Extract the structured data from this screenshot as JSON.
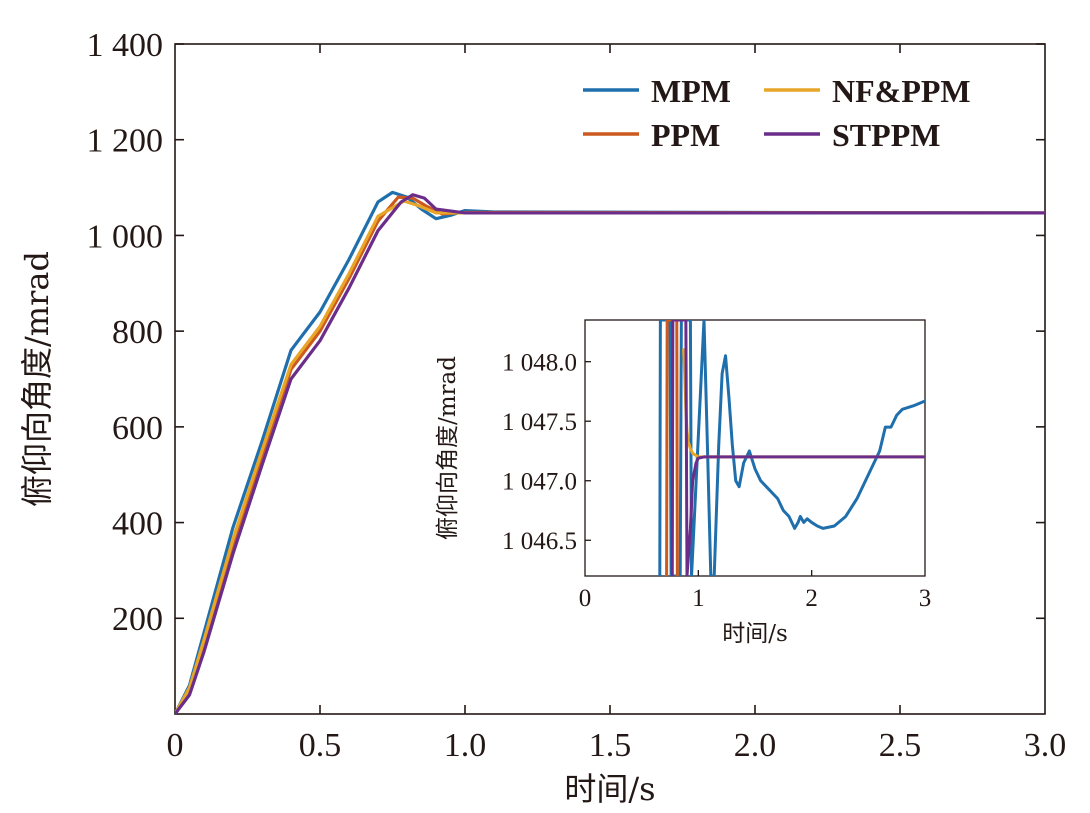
{
  "chart_data": [
    {
      "type": "line",
      "xlabel": "时间/s",
      "ylabel": "俯仰向角度/mrad",
      "xlim": [
        0,
        3.0
      ],
      "ylim": [
        0,
        1400
      ],
      "xticks": [
        0,
        0.5,
        1.0,
        1.5,
        2.0,
        2.5,
        3.0
      ],
      "xtick_labels": [
        "0",
        "0.5",
        "1.0",
        "1.5",
        "2.0",
        "2.5",
        "3.0"
      ],
      "yticks": [
        200,
        400,
        600,
        800,
        1000,
        1200,
        1400
      ],
      "ytick_labels": [
        "200",
        "400",
        "600",
        "800",
        "1 000",
        "1 200",
        "1 400"
      ],
      "grid": false,
      "legend": "top-right",
      "series": [
        {
          "name": "MPM",
          "color": "#1f6fad",
          "x": [
            0,
            0.05,
            0.1,
            0.2,
            0.3,
            0.4,
            0.5,
            0.6,
            0.7,
            0.75,
            0.8,
            0.85,
            0.9,
            0.95,
            1.0,
            1.1,
            3.0
          ],
          "y": [
            0,
            60,
            170,
            390,
            570,
            760,
            840,
            950,
            1070,
            1090,
            1080,
            1055,
            1035,
            1042,
            1052,
            1049,
            1047
          ]
        },
        {
          "name": "PPM",
          "color": "#cc5a1e",
          "x": [
            0,
            0.05,
            0.1,
            0.2,
            0.3,
            0.4,
            0.5,
            0.6,
            0.7,
            0.77,
            0.82,
            0.87,
            0.92,
            1.0,
            3.0
          ],
          "y": [
            0,
            50,
            150,
            355,
            540,
            720,
            800,
            910,
            1030,
            1080,
            1078,
            1060,
            1045,
            1048,
            1047
          ]
        },
        {
          "name": "NF&PPM",
          "color": "#e8a628",
          "x": [
            0,
            0.05,
            0.1,
            0.2,
            0.3,
            0.4,
            0.5,
            0.6,
            0.7,
            0.79,
            0.84,
            0.9,
            1.0,
            3.0
          ],
          "y": [
            0,
            55,
            155,
            365,
            550,
            730,
            810,
            920,
            1040,
            1072,
            1062,
            1047,
            1047,
            1047
          ]
        },
        {
          "name": "STPPM",
          "color": "#6b2d8a",
          "x": [
            0,
            0.05,
            0.1,
            0.2,
            0.3,
            0.4,
            0.5,
            0.6,
            0.7,
            0.78,
            0.82,
            0.86,
            0.9,
            1.0,
            3.0
          ],
          "y": [
            0,
            40,
            130,
            335,
            520,
            700,
            780,
            890,
            1010,
            1070,
            1085,
            1078,
            1055,
            1047,
            1047
          ]
        }
      ]
    },
    {
      "type": "line",
      "xlabel": "时间/s",
      "ylabel": "俯仰向角度/mrad",
      "xlim": [
        0,
        3
      ],
      "ylim": [
        1046.2,
        1048.35
      ],
      "xticks": [
        0,
        1,
        2,
        3
      ],
      "xtick_labels": [
        "0",
        "1",
        "2",
        "3"
      ],
      "yticks": [
        1046.5,
        1047.0,
        1047.5,
        1048.0
      ],
      "ytick_labels": [
        "1 046.5",
        "1 047.0",
        "1 047.5",
        "1 048.0"
      ],
      "grid": false,
      "series": [
        {
          "name": "MPM",
          "color": "#1f6fad",
          "x": [
            0.66,
            0.665,
            0.67,
            0.75,
            0.76,
            0.84,
            0.85,
            0.93,
            0.94,
            1.05,
            1.08,
            1.11,
            1.14,
            1.18,
            1.21,
            1.24,
            1.27,
            1.3,
            1.33,
            1.36,
            1.4,
            1.45,
            1.5,
            1.55,
            1.6,
            1.7,
            1.75,
            1.8,
            1.85,
            1.88,
            1.9,
            1.93,
            1.96,
            2.0,
            2.05,
            2.1,
            2.2,
            2.3,
            2.4,
            2.5,
            2.6,
            2.65,
            2.7,
            2.75,
            2.8,
            2.9,
            3.0
          ],
          "y": [
            1046.2,
            1048.35,
            1048.35,
            1048.35,
            1046.2,
            1046.2,
            1048.35,
            1048.35,
            1046.2,
            1048.35,
            1047.3,
            1046.2,
            1046.2,
            1047.3,
            1047.9,
            1048.05,
            1047.7,
            1047.3,
            1047.0,
            1046.95,
            1047.15,
            1047.25,
            1047.1,
            1047.0,
            1046.95,
            1046.85,
            1046.75,
            1046.7,
            1046.6,
            1046.65,
            1046.7,
            1046.65,
            1046.68,
            1046.65,
            1046.62,
            1046.6,
            1046.62,
            1046.7,
            1046.85,
            1047.05,
            1047.25,
            1047.45,
            1047.45,
            1047.55,
            1047.6,
            1047.63,
            1047.67
          ]
        },
        {
          "name": "PPM",
          "color": "#cc5a1e",
          "x": [
            0.72,
            0.725,
            0.73,
            0.81,
            0.815
          ],
          "y": [
            1046.2,
            1048.35,
            1048.35,
            1048.35,
            1046.2
          ]
        },
        {
          "name": "NF&PPM",
          "color": "#e8a628",
          "x": [
            0.87,
            0.88,
            0.89,
            0.9,
            0.91,
            0.93,
            0.95,
            1.0,
            3.0
          ],
          "y": [
            1048.1,
            1047.9,
            1047.6,
            1047.42,
            1047.33,
            1047.27,
            1047.23,
            1047.2,
            1047.2
          ]
        },
        {
          "name": "STPPM",
          "color": "#6b2d8a",
          "x": [
            0.77,
            0.775,
            0.78,
            0.89,
            0.9,
            0.93,
            0.95,
            0.98,
            1.0,
            1.05,
            3.0
          ],
          "y": [
            1046.2,
            1048.35,
            1048.35,
            1048.35,
            1046.2,
            1046.6,
            1047.0,
            1047.15,
            1047.19,
            1047.2,
            1047.2
          ]
        }
      ]
    }
  ]
}
